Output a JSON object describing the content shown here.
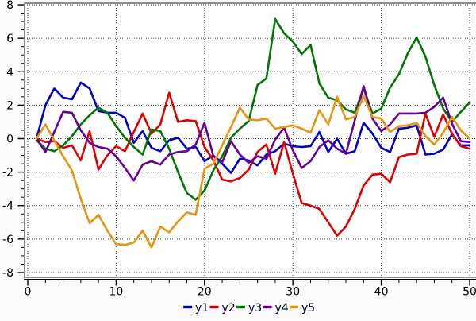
{
  "chart_data": {
    "type": "line",
    "title": "",
    "xlabel": "",
    "ylabel": "",
    "x_range": {
      "start": 1,
      "end": 50,
      "step": 1
    },
    "xlim": [
      -0.45,
      50.72
    ],
    "ylim": [
      -8.33,
      8.14
    ],
    "x_major_ticks": [
      0,
      10,
      20,
      30,
      40,
      50
    ],
    "x_minor_step": 2,
    "y_major_ticks": [
      8,
      6,
      4,
      2,
      0,
      -2,
      -4,
      -6,
      -8
    ],
    "y_minor_step": 0.5,
    "grid": "dotted lines at major ticks, both axes",
    "legend_position": "bottom-center",
    "series": [
      {
        "name": "y1",
        "color": "#0000CC",
        "values": [
          0,
          2,
          3,
          2.45,
          2.35,
          3.35,
          3,
          1.65,
          1.55,
          1.55,
          1.25,
          -0.25,
          0.45,
          -0.55,
          -0.75,
          -0.1,
          0.05,
          -0.6,
          -0.5,
          -1.35,
          -1,
          -1.5,
          -2.05,
          -1.2,
          -1.3,
          -1.6,
          -0.95,
          -0.75,
          -0.3,
          -0.45,
          -0.5,
          -0.45,
          0.4,
          -0.8,
          0,
          -0.9,
          -0.75,
          0.95,
          0.3,
          -0.55,
          -0.8,
          0.6,
          0.65,
          0.8,
          -0.95,
          -0.9,
          -0.65,
          0.25,
          -0.4,
          -0.4
        ]
      },
      {
        "name": "y2",
        "color": "#DC0000",
        "values": [
          0,
          -0.2,
          -0.15,
          -0.55,
          -0.4,
          -1.3,
          0.45,
          -1.85,
          -1,
          -0.45,
          -0.75,
          0.4,
          1.5,
          0.3,
          0.85,
          2.75,
          1,
          1.1,
          1.05,
          -0.5,
          -1.3,
          -2.45,
          -2.55,
          -2.35,
          -1.85,
          -0.8,
          -0.35,
          -2.1,
          -0.2,
          -2.1,
          -3.85,
          -4,
          -4.2,
          -5,
          -5.8,
          -5.25,
          -4.2,
          -2.8,
          -2.15,
          -2.1,
          -2.6,
          -1.1,
          -0.95,
          -0.9,
          1.5,
          0.1,
          1.45,
          0.3,
          -0.45,
          -0.6
        ]
      },
      {
        "name": "y3",
        "color": "#007700",
        "values": [
          -0.1,
          -0.6,
          -0.75,
          -0.4,
          0.15,
          0.85,
          1.4,
          1.85,
          1.55,
          0.75,
          0.05,
          -0.5,
          -0.95,
          0.55,
          0.45,
          -0.6,
          -2,
          -3.25,
          -3.65,
          -3.1,
          -1.9,
          -1.05,
          0.05,
          0.6,
          1.05,
          3.2,
          3.6,
          7.15,
          6.3,
          5.8,
          5.05,
          5.6,
          3.3,
          2.45,
          2.3,
          1.75,
          1.55,
          3,
          1.5,
          1.8,
          3.05,
          3.85,
          5.1,
          6.05,
          4.9,
          3.2,
          1.8,
          1,
          1.6,
          2.15
        ]
      },
      {
        "name": "y4",
        "color": "#660099",
        "values": [
          0,
          -0.8,
          0.4,
          1.6,
          1.55,
          0.5,
          -0.25,
          -0.5,
          -0.6,
          -1.05,
          -1.75,
          -2.5,
          -1.55,
          -1.35,
          -1.55,
          -0.95,
          -0.8,
          -0.75,
          -0.35,
          0.95,
          -1.05,
          -1.4,
          -0.15,
          -0.95,
          -1.45,
          -1.05,
          -1.2,
          -0.05,
          0.65,
          -0.7,
          -1.75,
          -1.35,
          -0.5,
          -0.1,
          -0.6,
          -0.9,
          1.1,
          3.15,
          1.2,
          0.45,
          0.85,
          1.5,
          1.5,
          1.5,
          1.55,
          1.9,
          2.45,
          0.9,
          -0.15,
          -0.2
        ]
      },
      {
        "name": "y5",
        "color": "#E6950E",
        "values": [
          0,
          0.85,
          -0.1,
          -1.05,
          -1.9,
          -3.6,
          -5.05,
          -4.55,
          -5.5,
          -6.3,
          -6.35,
          -6.2,
          -5.5,
          -6.5,
          -5.25,
          -5.6,
          -4.95,
          -4.4,
          -4.55,
          -1.8,
          -1.5,
          -0.4,
          0.7,
          1.85,
          1.15,
          1.1,
          1.2,
          0.6,
          0.7,
          0.8,
          0.6,
          0.35,
          1.7,
          0.85,
          2.5,
          1.15,
          1.3,
          2.55,
          1.3,
          1.2,
          0.4,
          0.75,
          0.8,
          0.95,
          0.15,
          -0.35,
          0.35,
          1.3,
          0.5,
          0
        ]
      }
    ]
  },
  "colors": {
    "background": "#FAFAFA",
    "canvas": "#FFFFFF",
    "frame": "#8C8C8C",
    "grid": "#3C3C3C",
    "axis": "#000000",
    "tick_label": "#000000",
    "legend_label": "#000028"
  }
}
